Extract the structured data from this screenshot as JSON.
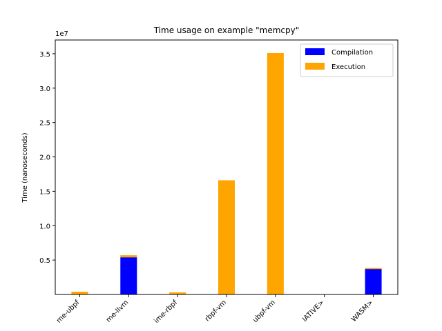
{
  "chart_data": {
    "type": "bar",
    "title": "Time usage on example \"memcpy\"",
    "ylabel": "Time (nanoseconds)",
    "y_offset_text": "1e7",
    "ylim": [
      0,
      37000000
    ],
    "yticks": [
      5000000,
      10000000,
      15000000,
      20000000,
      25000000,
      30000000,
      35000000
    ],
    "ytick_labels": [
      "0.5",
      "1.0",
      "1.5",
      "2.0",
      "2.5",
      "3.0",
      "3.5"
    ],
    "categories": [
      "me-ubpf",
      "me-llvm",
      "ime-rbpf",
      "rbpf-vm",
      "ubpf-vm",
      "IATIVE>",
      "WASM>"
    ],
    "stacked": true,
    "series": [
      {
        "name": "Compilation",
        "color": "#0000ff",
        "values": [
          0,
          5400000,
          0,
          0,
          0,
          0,
          3700000
        ]
      },
      {
        "name": "Execution",
        "color": "#ffa500",
        "values": [
          400000,
          300000,
          300000,
          16600000,
          35100000,
          0,
          150000
        ]
      }
    ],
    "legend_position": "top-right",
    "grid": false
  }
}
